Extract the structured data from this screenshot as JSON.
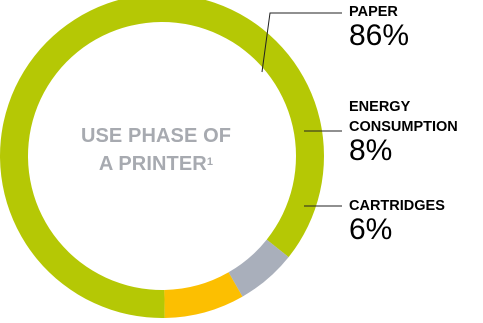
{
  "chart_data": {
    "type": "pie",
    "style": "donut",
    "center_title_lines": [
      "USE PHASE OF",
      "A PRINTER"
    ],
    "center_title_superscript": "1",
    "slices": [
      {
        "label_lines": [
          "PAPER"
        ],
        "percent_text": "86%",
        "value": 86,
        "color": "#b5c805"
      },
      {
        "label_lines": [
          "ENERGY",
          "CONSUMPTION"
        ],
        "percent_text": "8%",
        "value": 8,
        "color": "#fcbf01"
      },
      {
        "label_lines": [
          "CARTRIDGES"
        ],
        "percent_text": "6%",
        "value": 6,
        "color": "#a9afbb"
      }
    ]
  }
}
